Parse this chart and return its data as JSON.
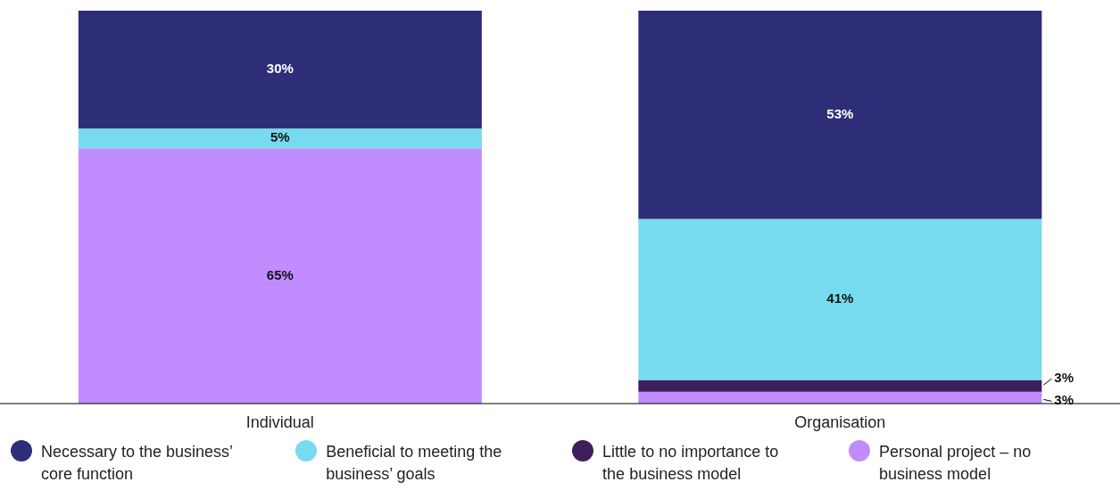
{
  "chart_data": {
    "type": "bar",
    "stacked": true,
    "categories": [
      "Individual",
      "Organisation"
    ],
    "series": [
      {
        "name": "Personal project – no business model",
        "color": "#c08cff",
        "values": [
          65,
          3
        ],
        "value_labels": [
          "65%",
          "3%"
        ]
      },
      {
        "name": "Little to no importance to the business model",
        "color": "#3d1f5a",
        "values": [
          0,
          3
        ],
        "value_labels": [
          null,
          "3%"
        ]
      },
      {
        "name": "Beneficial to meeting the business’ goals",
        "color": "#76dbee",
        "values": [
          5,
          41
        ],
        "value_labels": [
          "5%",
          "41%"
        ]
      },
      {
        "name": "Necessary to the business’ core function",
        "color": "#2e2e78",
        "values": [
          30,
          53
        ],
        "value_labels": [
          "30%",
          "53%"
        ]
      }
    ],
    "legend": "bottom",
    "grid": false
  }
}
